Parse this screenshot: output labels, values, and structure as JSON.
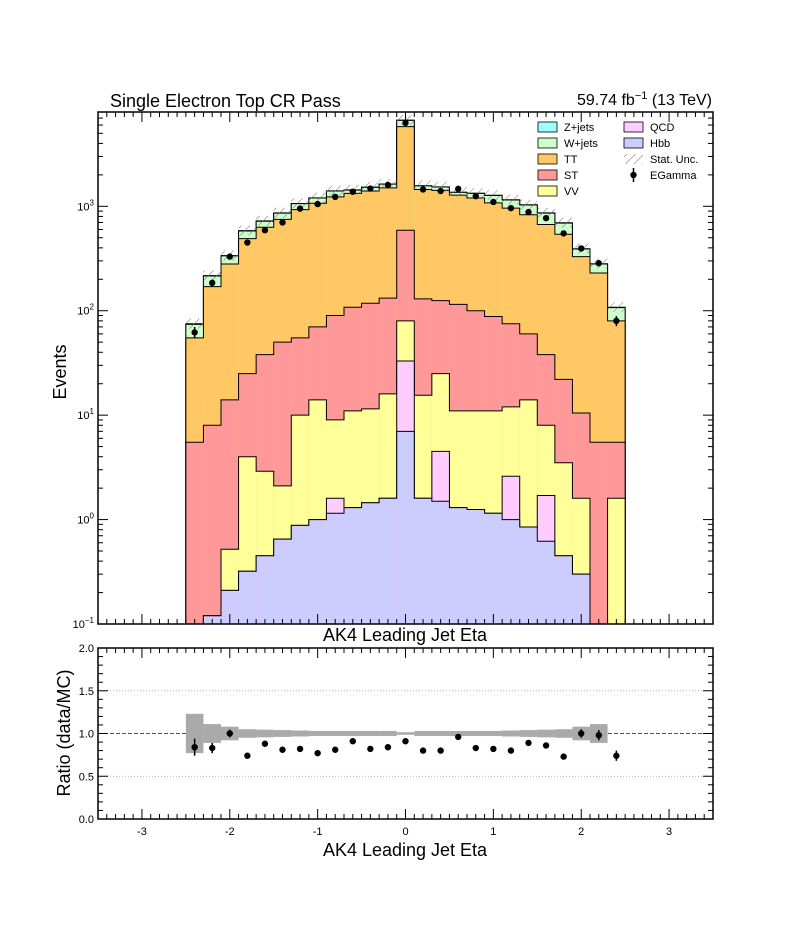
{
  "header": {
    "title": "Single Electron Top CR Pass",
    "lumi_main": "59.74 fb",
    "lumi_sup": "−1",
    "lumi_tail": " (13 TeV)"
  },
  "chart_data": [
    {
      "type": "bar",
      "stacked": true,
      "title": "Single Electron Top CR Pass",
      "xlabel": "AK4 Leading Jet Eta",
      "ylabel": "Events",
      "xlim": [
        -3.5,
        3.5
      ],
      "ylim": [
        0.1,
        8000
      ],
      "yscale": "log",
      "y_ticks": [
        {
          "value": 0.1,
          "base": "10",
          "exp": "−1"
        },
        {
          "value": 1,
          "base": "10",
          "exp": "0"
        },
        {
          "value": 10,
          "base": "10",
          "exp": "1"
        },
        {
          "value": 100,
          "base": "10",
          "exp": "2"
        },
        {
          "value": 1000,
          "base": "10",
          "exp": "3"
        }
      ],
      "legend_position": "top-right",
      "bin_edges": [
        -2.5,
        -2.3,
        -2.1,
        -1.9,
        -1.7,
        -1.5,
        -1.3,
        -1.1,
        -0.9,
        -0.7,
        -0.5,
        -0.3,
        -0.1,
        0.1,
        0.3,
        0.5,
        0.7,
        0.9,
        1.1,
        1.3,
        1.5,
        1.7,
        1.9,
        2.1,
        2.3,
        2.5
      ],
      "stack_order": [
        "Hbb",
        "QCD",
        "VV",
        "ST",
        "TT",
        "W+jets",
        "Z+jets"
      ],
      "cumulative": [
        {
          "name": "Hbb",
          "color": "#ccccff",
          "values": [
            0.08,
            0.12,
            0.21,
            0.32,
            0.45,
            0.65,
            0.88,
            1.0,
            1.15,
            1.3,
            1.45,
            1.6,
            7.0,
            1.6,
            1.5,
            1.3,
            1.25,
            1.15,
            1.0,
            0.85,
            0.62,
            0.45,
            0.3,
            0.08,
            0.02
          ]
        },
        {
          "name": "QCD",
          "color": "#ffccff",
          "values": [
            0.08,
            0.12,
            0.21,
            0.32,
            0.45,
            0.65,
            0.88,
            1.0,
            1.6,
            1.3,
            1.45,
            1.6,
            33,
            1.6,
            4.5,
            1.3,
            1.25,
            1.15,
            2.6,
            0.85,
            1.7,
            0.45,
            0.3,
            0.08,
            0.02
          ]
        },
        {
          "name": "VV",
          "color": "#ffff99",
          "values": [
            0.08,
            0.12,
            0.52,
            4.0,
            2.9,
            2.1,
            10.0,
            14.0,
            9.0,
            11.0,
            11.5,
            16.0,
            80,
            15.5,
            25.0,
            11.0,
            11.0,
            11.0,
            12.0,
            14.0,
            8.0,
            3.5,
            1.6,
            0.08,
            1.6
          ]
        },
        {
          "name": "ST",
          "color": "#ff9999",
          "values": [
            5.5,
            8.0,
            14.0,
            25.0,
            38.0,
            50.0,
            55.0,
            70.0,
            90.0,
            108.0,
            118.0,
            132.0,
            590,
            130.0,
            125.0,
            115.0,
            100.0,
            88.0,
            75.0,
            60.0,
            38.0,
            22.0,
            10.5,
            5.5,
            5.5
          ]
        },
        {
          "name": "TT",
          "color": "#ffc864",
          "values": [
            55,
            170,
            280,
            490,
            630,
            750,
            930,
            1070,
            1230,
            1330,
            1400,
            1500,
            5800,
            1450,
            1420,
            1280,
            1200,
            1080,
            960,
            830,
            670,
            540,
            330,
            230,
            80
          ]
        },
        {
          "name": "W+jets",
          "color": "#ccffcc",
          "values": [
            74,
            215,
            335,
            580,
            720,
            860,
            1060,
            1200,
            1400,
            1430,
            1520,
            1630,
            6650,
            1570,
            1530,
            1360,
            1330,
            1270,
            1150,
            1030,
            860,
            690,
            390,
            280,
            107
          ]
        },
        {
          "name": "Z+jets",
          "color": "#99ffff",
          "values": [
            75,
            217,
            337,
            585,
            725,
            865,
            1065,
            1205,
            1405,
            1435,
            1525,
            1635,
            6680,
            1575,
            1535,
            1365,
            1335,
            1275,
            1155,
            1035,
            865,
            695,
            392,
            282,
            108
          ]
        }
      ],
      "data_series": {
        "name": "EGamma",
        "x": [
          -2.4,
          -2.2,
          -2.0,
          -1.8,
          -1.6,
          -1.4,
          -1.2,
          -1.0,
          -0.8,
          -0.6,
          -0.4,
          -0.2,
          0.0,
          0.2,
          0.4,
          0.6,
          0.8,
          1.0,
          1.2,
          1.4,
          1.6,
          1.8,
          2.0,
          2.2,
          2.4
        ],
        "values": [
          62,
          185,
          330,
          450,
          590,
          700,
          950,
          1050,
          1230,
          1380,
          1480,
          1600,
          6300,
          1450,
          1400,
          1470,
          1250,
          1100,
          960,
          880,
          770,
          550,
          395,
          285,
          80
        ]
      },
      "legend": [
        {
          "label": "Z+jets",
          "type": "box",
          "color": "#99ffff"
        },
        {
          "label": "W+jets",
          "type": "box",
          "color": "#ccffcc"
        },
        {
          "label": "TT",
          "type": "box",
          "color": "#ffc864"
        },
        {
          "label": "ST",
          "type": "box",
          "color": "#ff9999"
        },
        {
          "label": "VV",
          "type": "box",
          "color": "#ffff99"
        },
        {
          "label": "QCD",
          "type": "box",
          "color": "#ffccff"
        },
        {
          "label": "Hbb",
          "type": "box",
          "color": "#ccccff"
        },
        {
          "label": "Stat. Unc.",
          "type": "hatch",
          "color": "#777777"
        },
        {
          "label": "EGamma",
          "type": "marker",
          "color": "#000000"
        }
      ]
    },
    {
      "type": "scatter",
      "xlabel": "AK4 Leading Jet Eta",
      "ylabel": "Ratio (data/MC)",
      "xlim": [
        -3.5,
        3.5
      ],
      "ylim": [
        0.0,
        2.0
      ],
      "x_ticks": [
        "-3",
        "-2",
        "-1",
        "0",
        "1",
        "2",
        "3"
      ],
      "y_ticks": [
        "0.0",
        "0.5",
        "1.0",
        "1.5",
        "2.0"
      ],
      "reference_line": 1.0,
      "grid": "dotted horizontal",
      "x": [
        -2.4,
        -2.2,
        -2.0,
        -1.8,
        -1.6,
        -1.4,
        -1.2,
        -1.0,
        -0.8,
        -0.6,
        -0.4,
        -0.2,
        0.0,
        0.2,
        0.4,
        0.6,
        0.8,
        1.0,
        1.2,
        1.4,
        1.6,
        1.8,
        2.0,
        2.2,
        2.4
      ],
      "ratio": [
        0.84,
        0.83,
        1.0,
        0.74,
        0.88,
        0.81,
        0.82,
        0.77,
        0.81,
        0.91,
        0.82,
        0.84,
        0.91,
        0.8,
        0.8,
        0.96,
        0.83,
        0.82,
        0.8,
        0.89,
        0.86,
        0.73,
        1.0,
        0.98,
        0.74
      ],
      "ratio_err": [
        0.1,
        0.06,
        0.045,
        0.0,
        0.0,
        0.0,
        0.0,
        0.0,
        0.0,
        0.0,
        0.0,
        0.0,
        0.0,
        0.0,
        0.0,
        0.0,
        0.0,
        0.0,
        0.0,
        0.0,
        0.0,
        0.0,
        0.05,
        0.06,
        0.06
      ],
      "unc_band_halfwidth": [
        0.23,
        0.11,
        0.08,
        0.05,
        0.045,
        0.04,
        0.035,
        0.03,
        0.03,
        0.03,
        0.03,
        0.03,
        0.015,
        0.03,
        0.03,
        0.03,
        0.03,
        0.03,
        0.035,
        0.04,
        0.045,
        0.05,
        0.08,
        0.11,
        0.0
      ]
    }
  ]
}
